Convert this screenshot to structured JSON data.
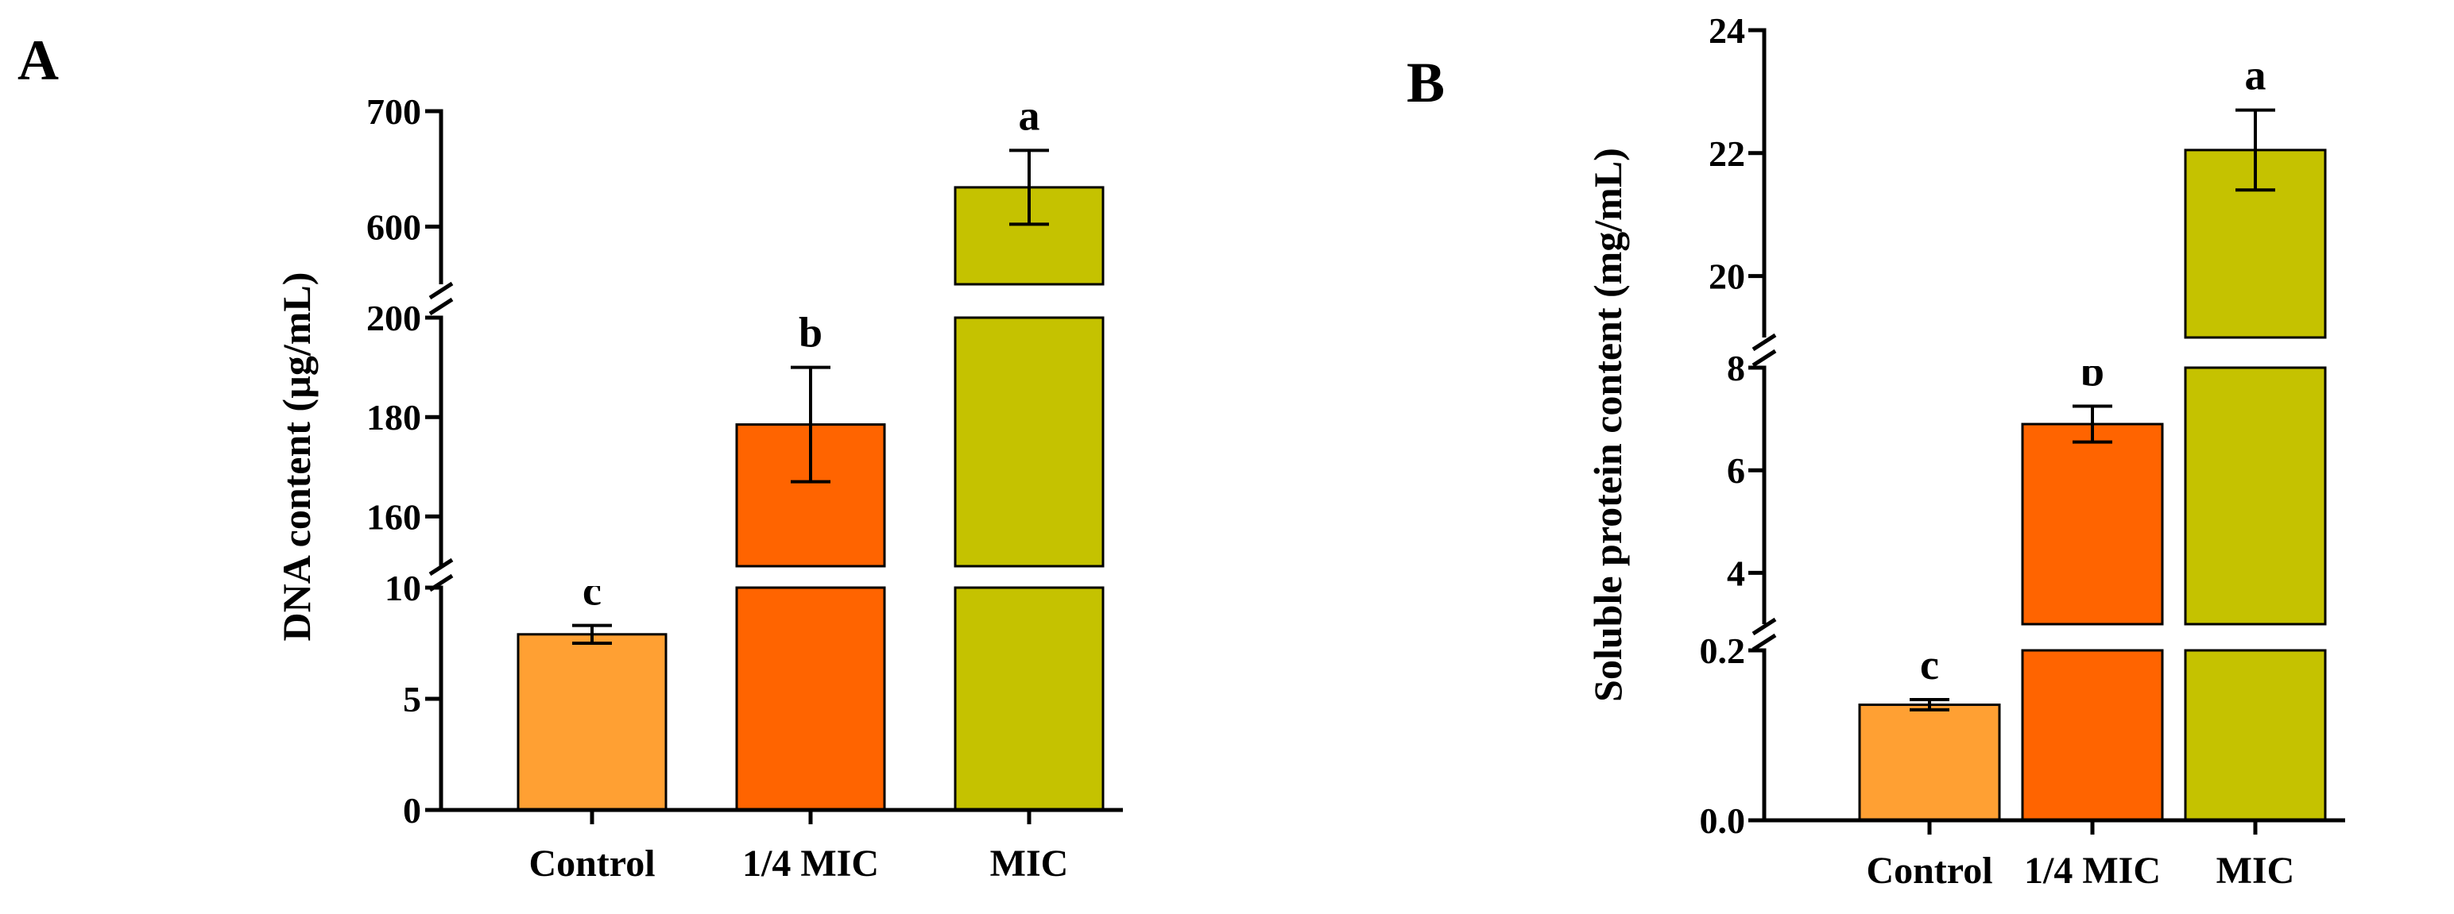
{
  "chart_data": [
    {
      "panel": "A",
      "type": "bar",
      "ylabel": "DNA content (µg/mL)",
      "categories": [
        "Control",
        "1/4 MIC",
        "MIC"
      ],
      "values": [
        7.9,
        178.5,
        634
      ],
      "errors": [
        0.4,
        11.5,
        32
      ],
      "significance": [
        "c",
        "b",
        "a"
      ],
      "colors": [
        "#FFA033",
        "#FF6400",
        "#C5C200"
      ],
      "y_axis_broken": true,
      "y_segments": [
        {
          "range": [
            0,
            10
          ],
          "ticks": [
            0,
            5,
            10
          ],
          "tick_labels": [
            "0",
            "5",
            "10"
          ]
        },
        {
          "range": [
            150,
            200
          ],
          "ticks": [
            160,
            180,
            200
          ],
          "tick_labels": [
            "160",
            "180",
            "200"
          ]
        },
        {
          "range": [
            550,
            700
          ],
          "ticks": [
            600,
            700
          ],
          "tick_labels": [
            "600",
            "700"
          ]
        }
      ]
    },
    {
      "panel": "B",
      "type": "bar",
      "ylabel": "Soluble protein content (mg/mL)",
      "categories": [
        "Control",
        "1/4 MIC",
        "MIC"
      ],
      "values": [
        0.136,
        6.9,
        22.05
      ],
      "errors": [
        0.006,
        0.35,
        0.65
      ],
      "significance": [
        "c",
        "b",
        "a"
      ],
      "colors": [
        "#FFA033",
        "#FF6400",
        "#C5C200"
      ],
      "y_axis_broken": true,
      "y_segments": [
        {
          "range": [
            0,
            0.2
          ],
          "ticks": [
            0.0,
            0.2
          ],
          "tick_labels": [
            "0.0",
            "0.2"
          ]
        },
        {
          "range": [
            3,
            8
          ],
          "ticks": [
            4,
            6,
            8
          ],
          "tick_labels": [
            "4",
            "6",
            "8"
          ]
        },
        {
          "range": [
            19,
            24
          ],
          "ticks": [
            20,
            22,
            24
          ],
          "tick_labels": [
            "20",
            "22",
            "24"
          ]
        }
      ]
    }
  ]
}
